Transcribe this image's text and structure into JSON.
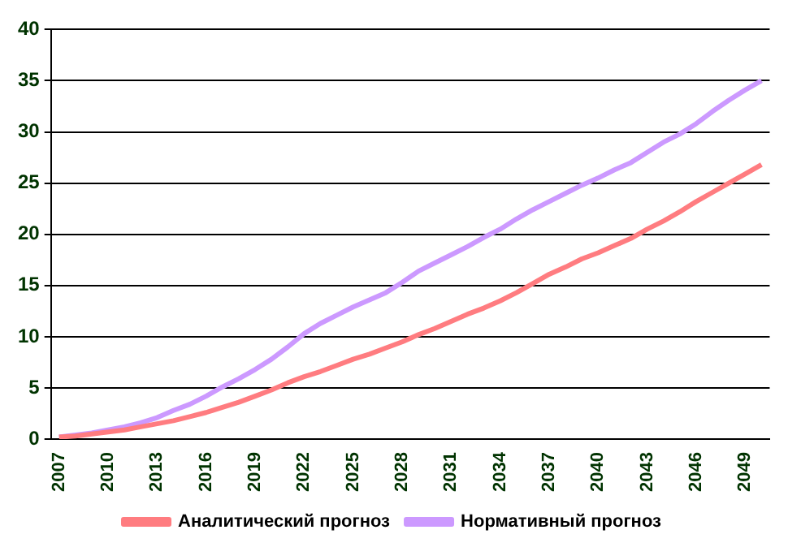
{
  "chart_data": {
    "type": "line",
    "categories": [
      "2007",
      null,
      null,
      "2010",
      null,
      null,
      "2013",
      null,
      null,
      "2016",
      null,
      null,
      "2019",
      null,
      null,
      "2022",
      null,
      null,
      "2025",
      null,
      null,
      "2028",
      null,
      null,
      "2031",
      null,
      null,
      "2034",
      null,
      null,
      "2037",
      null,
      null,
      "2040",
      null,
      null,
      "2043",
      null,
      null,
      "2046",
      null,
      null,
      "2049",
      null
    ],
    "series": [
      {
        "name": "Аналитический прогноз",
        "color": "#ff7c80",
        "values": [
          0.2,
          0.3,
          0.5,
          0.7,
          0.9,
          1.2,
          1.5,
          1.8,
          2.2,
          2.6,
          3.1,
          3.6,
          4.2,
          4.8,
          5.5,
          6.1,
          6.6,
          7.2,
          7.8,
          8.3,
          8.9,
          9.5,
          10.2,
          10.8,
          11.5,
          12.2,
          12.8,
          13.5,
          14.3,
          15.2,
          16.1,
          16.8,
          17.6,
          18.2,
          18.9,
          19.6,
          20.5,
          21.3,
          22.2,
          23.2,
          24.1,
          25.0,
          25.9,
          26.8
        ]
      },
      {
        "name": "Нормативный прогноз",
        "color": "#cc99ff",
        "values": [
          0.2,
          0.4,
          0.6,
          0.9,
          1.2,
          1.6,
          2.1,
          2.8,
          3.4,
          4.2,
          5.1,
          5.9,
          6.8,
          7.8,
          9.0,
          10.3,
          11.3,
          12.1,
          12.9,
          13.6,
          14.3,
          15.3,
          16.4,
          17.2,
          18.0,
          18.8,
          19.7,
          20.5,
          21.5,
          22.4,
          23.2,
          24.0,
          24.8,
          25.5,
          26.3,
          27.0,
          28.0,
          29.0,
          29.8,
          30.8,
          32.0,
          33.1,
          34.1,
          35.0
        ]
      }
    ],
    "ylim": [
      0,
      40
    ],
    "yticks": [
      0,
      5,
      10,
      15,
      20,
      25,
      30,
      35,
      40
    ],
    "grid": "y",
    "legend": "bottom",
    "marker": "none",
    "line_style": "solid"
  }
}
